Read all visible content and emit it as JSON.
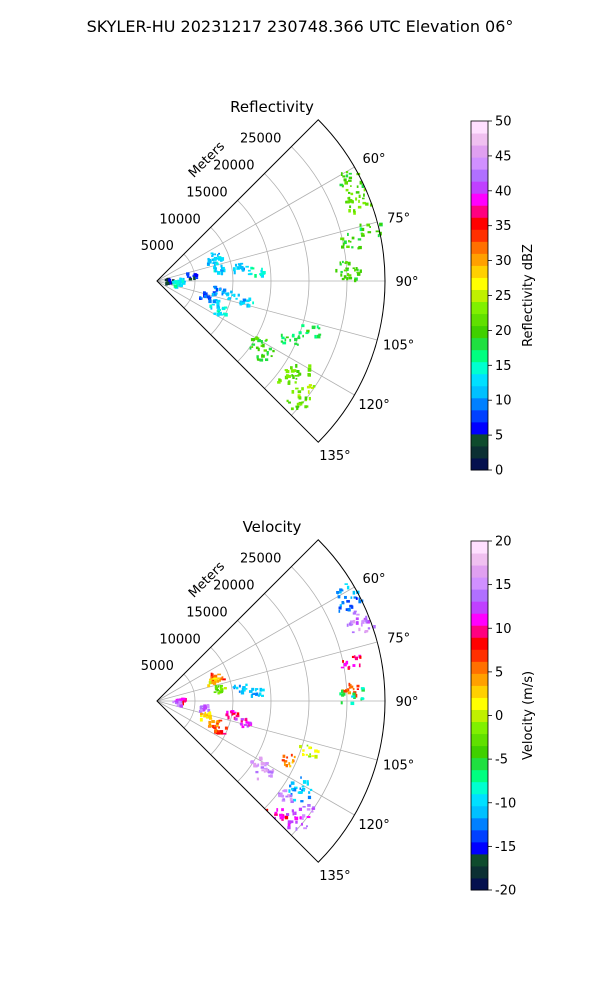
{
  "figure": {
    "title": "SKYLER-HU  20231217  230748.366 UTC Elevation 06°"
  },
  "chart_data": [
    {
      "type": "polar-sector",
      "title": "Reflectivity",
      "radial_label": "Meters",
      "radial_ticks": [
        5000,
        10000,
        15000,
        20000,
        25000
      ],
      "radial_range": [
        0,
        30000
      ],
      "angle_ticks_deg": [
        60,
        75,
        90,
        105,
        120,
        135
      ],
      "angle_range_deg": [
        45,
        135
      ],
      "grid": true,
      "colorbar": {
        "label": "Reflectivity dBZ",
        "range": [
          0,
          50
        ],
        "ticks": [
          0,
          5,
          10,
          15,
          20,
          25,
          30,
          35,
          40,
          45,
          50
        ],
        "colors": [
          "#04104e",
          "#0b2f33",
          "#0e4b2d",
          "#0000ff",
          "#0040ff",
          "#0080ff",
          "#00c0ff",
          "#00e0ff",
          "#00ffd0",
          "#00ff80",
          "#20e040",
          "#40d000",
          "#60e000",
          "#80f000",
          "#c0f000",
          "#ffff00",
          "#ffd000",
          "#ffa000",
          "#ff7000",
          "#ff3000",
          "#ff0000",
          "#ff0080",
          "#ff00ff",
          "#c040ff",
          "#b070ff",
          "#d090ff",
          "#e0a0f0",
          "#f0c0f0",
          "#ffe0ff"
        ]
      },
      "echoes": [
        {
          "az": 62,
          "r": 29000,
          "value": 20
        },
        {
          "az": 66,
          "r": 28500,
          "value": 21
        },
        {
          "az": 69,
          "r": 28500,
          "value": 22
        },
        {
          "az": 78,
          "r": 26000,
          "value": 20
        },
        {
          "az": 86,
          "r": 25000,
          "value": 20
        },
        {
          "az": 88,
          "r": 25500,
          "value": 20
        },
        {
          "az": 76,
          "r": 28500,
          "value": 19
        },
        {
          "az": 67,
          "r": 8500,
          "value": 12
        },
        {
          "az": 70,
          "r": 7800,
          "value": 12
        },
        {
          "az": 78,
          "r": 8200,
          "value": 12
        },
        {
          "az": 80,
          "r": 11000,
          "value": 12
        },
        {
          "az": 80,
          "r": 4500,
          "value": 6
        },
        {
          "az": 84,
          "r": 13000,
          "value": 14
        },
        {
          "az": 86,
          "r": 1500,
          "value": 4
        },
        {
          "az": 88,
          "r": 3000,
          "value": 13
        },
        {
          "az": 95,
          "r": 2500,
          "value": 14
        },
        {
          "az": 98,
          "r": 8000,
          "value": 9
        },
        {
          "az": 100,
          "r": 10000,
          "value": 12
        },
        {
          "az": 103,
          "r": 12000,
          "value": 12
        },
        {
          "az": 106,
          "r": 6500,
          "value": 7
        },
        {
          "az": 111,
          "r": 8000,
          "value": 12
        },
        {
          "az": 115,
          "r": 9000,
          "value": 14
        },
        {
          "az": 108,
          "r": 21000,
          "value": 18
        },
        {
          "az": 114,
          "r": 19000,
          "value": 18
        },
        {
          "az": 121,
          "r": 15500,
          "value": 20
        },
        {
          "az": 124,
          "r": 17000,
          "value": 19
        },
        {
          "az": 122,
          "r": 22000,
          "value": 21
        },
        {
          "az": 126,
          "r": 21000,
          "value": 22
        },
        {
          "az": 127,
          "r": 24000,
          "value": 24
        },
        {
          "az": 131,
          "r": 24500,
          "value": 22
        }
      ]
    },
    {
      "type": "polar-sector",
      "title": "Velocity",
      "radial_label": "Meters",
      "radial_ticks": [
        5000,
        10000,
        15000,
        20000,
        25000
      ],
      "radial_range": [
        0,
        30000
      ],
      "angle_ticks_deg": [
        60,
        75,
        90,
        105,
        120,
        135
      ],
      "angle_range_deg": [
        45,
        135
      ],
      "grid": true,
      "colorbar": {
        "label": "Velocity (m/s)",
        "range": [
          -20,
          20
        ],
        "ticks": [
          -20,
          -15,
          -10,
          -5,
          0,
          5,
          10,
          15,
          20
        ],
        "colors": [
          "#04104e",
          "#0b2f33",
          "#0e4b2d",
          "#0000ff",
          "#0040ff",
          "#0080ff",
          "#00c0ff",
          "#00e0ff",
          "#00ffd0",
          "#00ff80",
          "#20e040",
          "#40d000",
          "#60e000",
          "#80f000",
          "#c0f000",
          "#ffff00",
          "#ffd000",
          "#ffa000",
          "#ff7000",
          "#ff3000",
          "#ff0000",
          "#ff0080",
          "#ff00ff",
          "#c040ff",
          "#b070ff",
          "#d090ff",
          "#e0a0f0",
          "#f0c0f0",
          "#ffe0ff"
        ]
      },
      "echoes": [
        {
          "az": 60,
          "r": 29000,
          "value": -11
        },
        {
          "az": 63,
          "r": 28500,
          "value": -13
        },
        {
          "az": 67,
          "r": 28500,
          "value": 14
        },
        {
          "az": 70,
          "r": 28500,
          "value": 15
        },
        {
          "az": 78,
          "r": 26000,
          "value": 10
        },
        {
          "az": 86,
          "r": 25000,
          "value": 6
        },
        {
          "az": 88,
          "r": 25500,
          "value": -7
        },
        {
          "az": 67,
          "r": 8500,
          "value": 6
        },
        {
          "az": 70,
          "r": 7800,
          "value": 2
        },
        {
          "az": 78,
          "r": 8200,
          "value": -2
        },
        {
          "az": 80,
          "r": 11000,
          "value": -11
        },
        {
          "az": 84,
          "r": 13000,
          "value": -11
        },
        {
          "az": 88,
          "r": 3000,
          "value": 10
        },
        {
          "az": 95,
          "r": 2500,
          "value": 14
        },
        {
          "az": 97,
          "r": 6000,
          "value": 13
        },
        {
          "az": 100,
          "r": 10000,
          "value": 10
        },
        {
          "az": 103,
          "r": 12000,
          "value": 11
        },
        {
          "az": 106,
          "r": 6500,
          "value": 3
        },
        {
          "az": 111,
          "r": 8000,
          "value": 5
        },
        {
          "az": 115,
          "r": 9000,
          "value": 8
        },
        {
          "az": 108,
          "r": 21000,
          "value": 0
        },
        {
          "az": 114,
          "r": 19000,
          "value": 5
        },
        {
          "az": 121,
          "r": 15500,
          "value": 15
        },
        {
          "az": 124,
          "r": 17000,
          "value": 15
        },
        {
          "az": 120,
          "r": 21500,
          "value": -11
        },
        {
          "az": 123,
          "r": 22500,
          "value": -11
        },
        {
          "az": 126,
          "r": 21000,
          "value": 15
        },
        {
          "az": 127,
          "r": 24000,
          "value": 14
        },
        {
          "az": 131,
          "r": 24500,
          "value": 13
        },
        {
          "az": 133,
          "r": 21500,
          "value": 10
        }
      ]
    }
  ]
}
